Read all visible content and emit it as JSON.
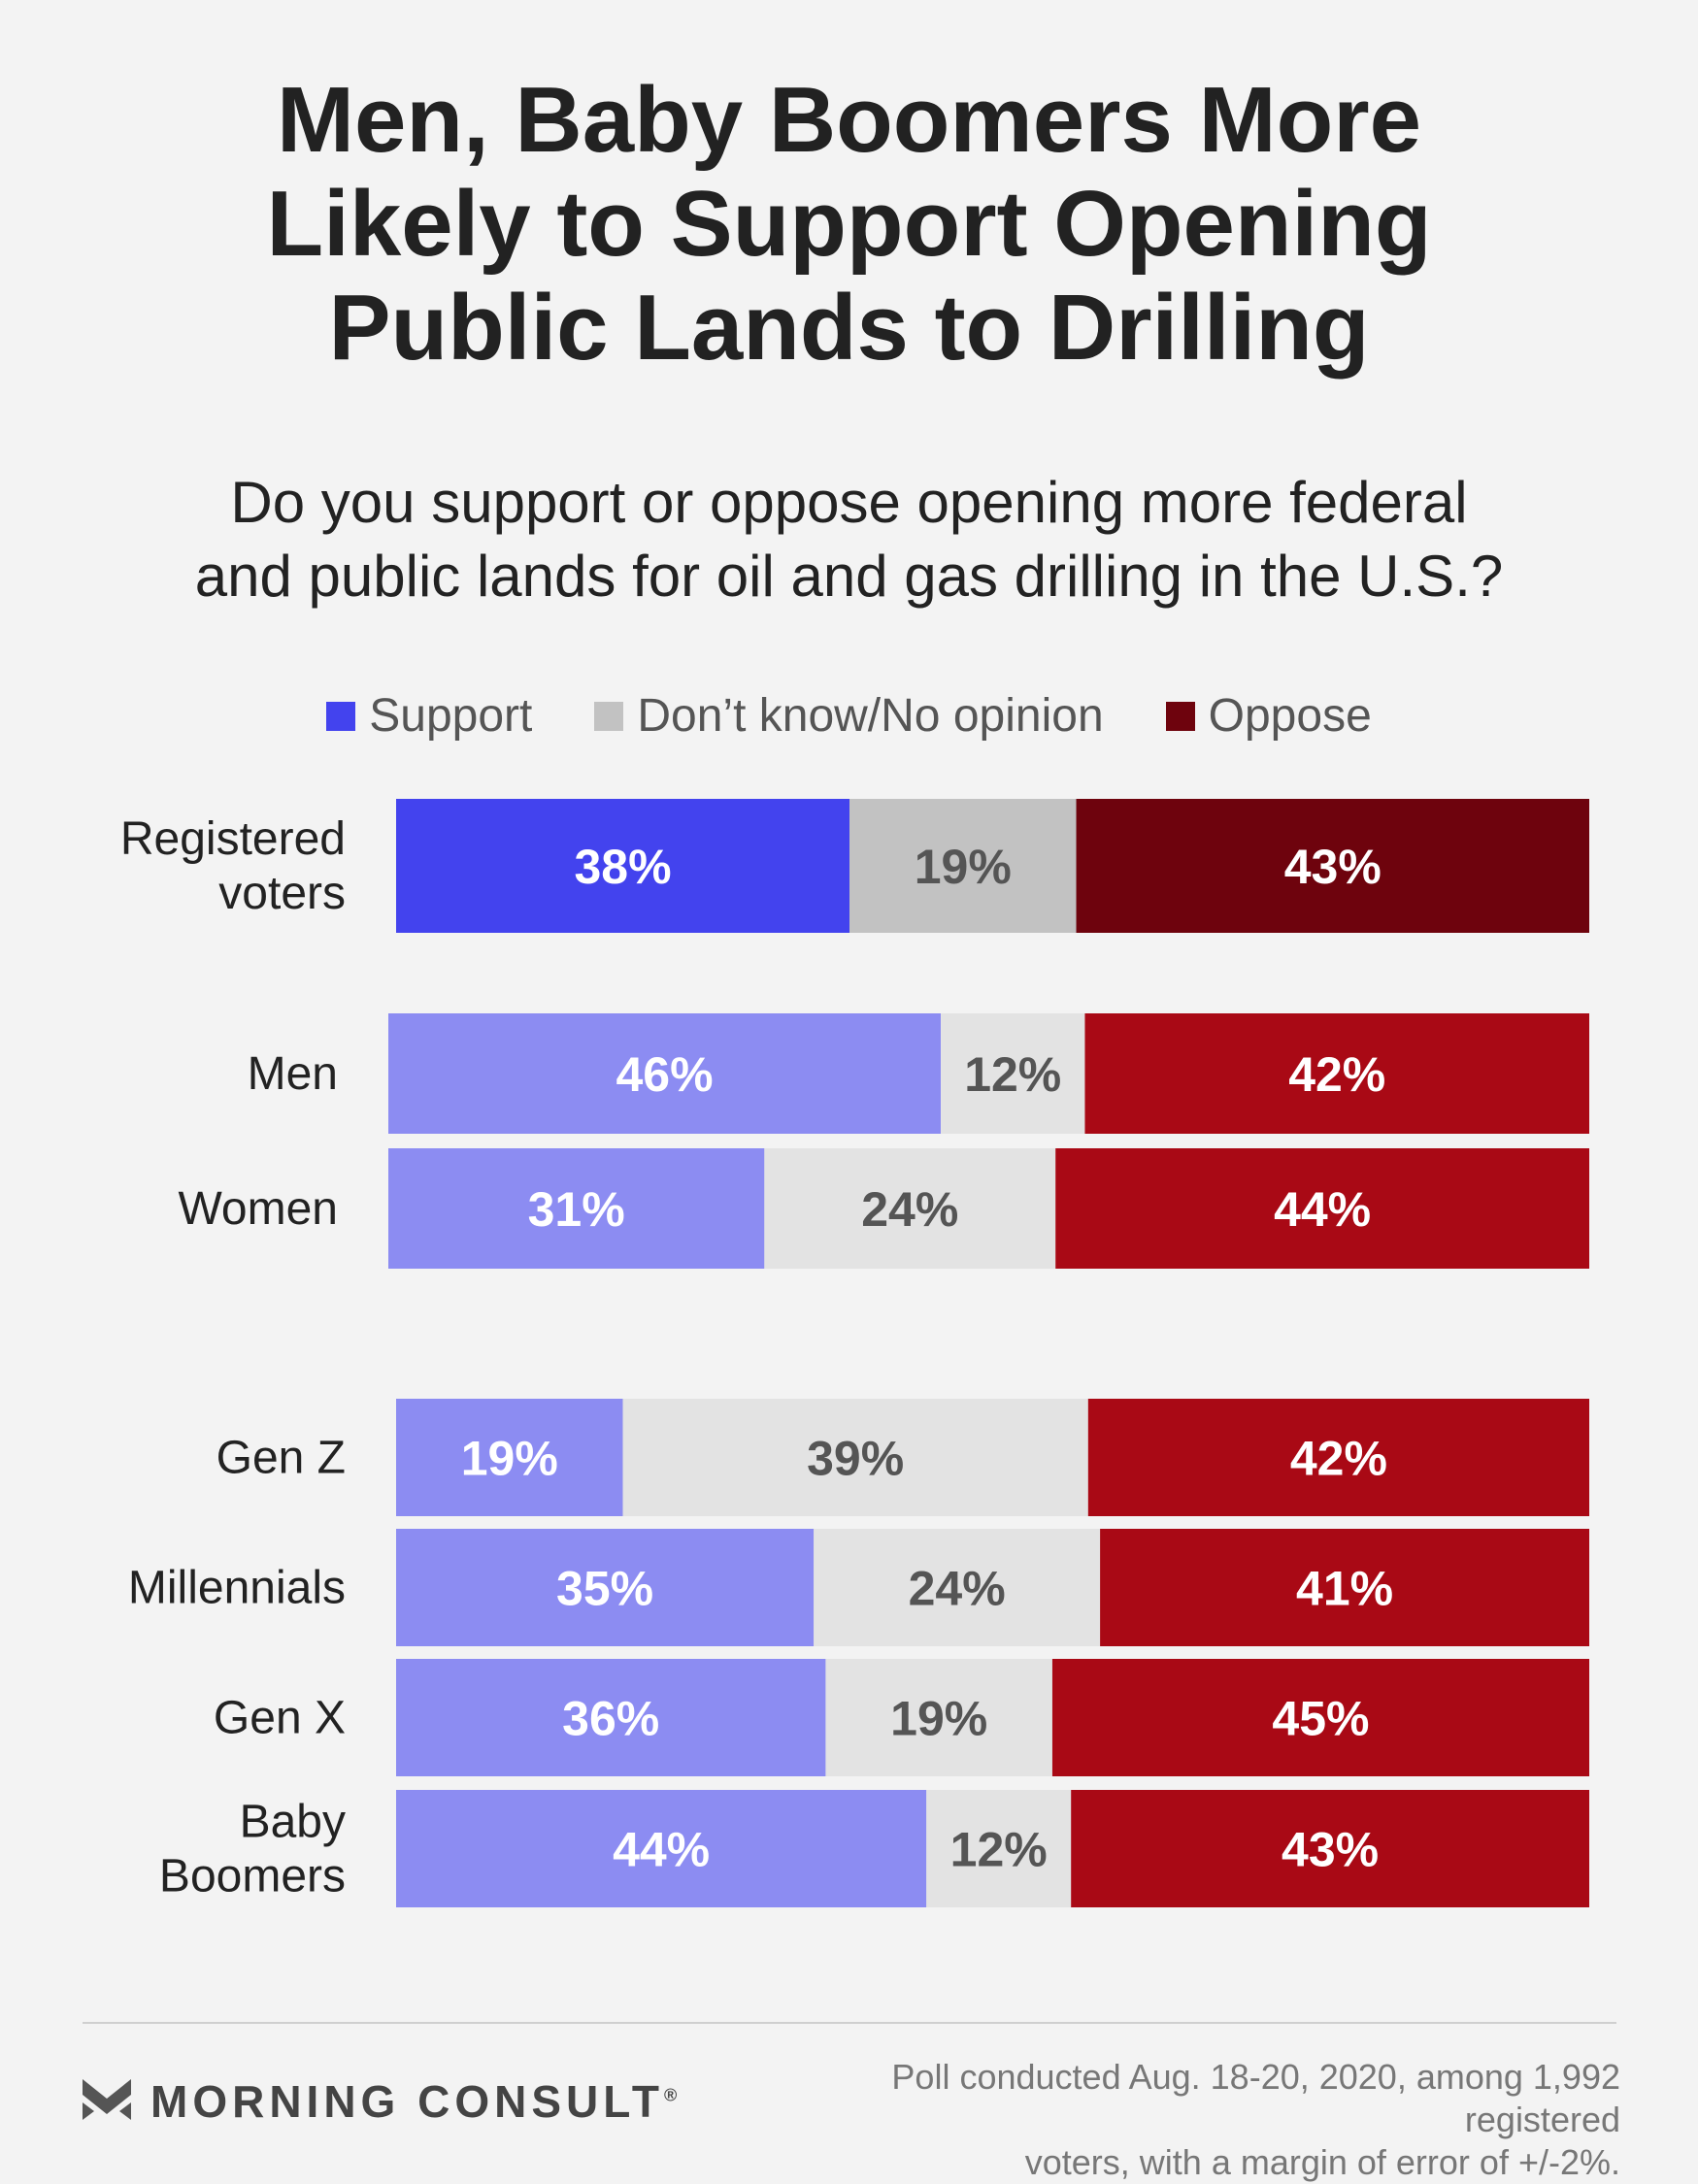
{
  "title_lines": [
    "Men, Baby Boomers More",
    "Likely to Support Opening",
    "Public Lands to Drilling"
  ],
  "subtitle_lines": [
    "Do you support or oppose opening more federal",
    "and public lands for oil and gas drilling in the U.S.?"
  ],
  "legend": [
    {
      "label": "Support",
      "color": "#4343ee"
    },
    {
      "label": "Don’t know/No opinion",
      "color": "#c2c2c2"
    },
    {
      "label": "Oppose",
      "color": "#6e030d"
    }
  ],
  "chart_data": {
    "type": "bar",
    "orientation": "horizontal",
    "stacked": true,
    "categories": [
      "Registered voters",
      "Men",
      "Women",
      "Gen Z",
      "Millennials",
      "Gen X",
      "Baby Boomers"
    ],
    "category_label_lines": [
      [
        "Registered",
        "voters"
      ],
      [
        "Men"
      ],
      [
        "Women"
      ],
      [
        "Gen Z"
      ],
      [
        "Millennials"
      ],
      [
        "Gen X"
      ],
      [
        "Baby",
        "Boomers"
      ]
    ],
    "series": [
      {
        "name": "Support",
        "values": [
          38,
          46,
          31,
          19,
          35,
          36,
          44
        ]
      },
      {
        "name": "Don’t know/No opinion",
        "values": [
          19,
          12,
          24,
          39,
          24,
          19,
          12
        ]
      },
      {
        "name": "Oppose",
        "values": [
          43,
          42,
          44,
          42,
          41,
          45,
          43
        ]
      }
    ],
    "value_labels": [
      [
        "38%",
        "19%",
        "43%"
      ],
      [
        "46%",
        "12%",
        "42%"
      ],
      [
        "31%",
        "24%",
        "44%"
      ],
      [
        "19%",
        "39%",
        "42%"
      ],
      [
        "35%",
        "24%",
        "41%"
      ],
      [
        "36%",
        "19%",
        "45%"
      ],
      [
        "44%",
        "12%",
        "43%"
      ]
    ],
    "colors": {
      "highlight": [
        "#4343ee",
        "#c2c2c2",
        "#6e030d"
      ],
      "default": [
        "#8c8cf2",
        "#e3e3e3",
        "#a90915"
      ],
      "label_text": [
        "#ffffff",
        "#555555",
        "#ffffff"
      ]
    },
    "xlim": [
      0,
      100
    ],
    "legend_position": "top-center",
    "grid": false
  },
  "brand": {
    "name": "MORNING CONSULT",
    "mark": "®"
  },
  "footnote_lines": [
    "Poll conducted Aug. 18-20, 2020, among 1,992 registered",
    "voters, with a margin of error of +/-2%."
  ]
}
